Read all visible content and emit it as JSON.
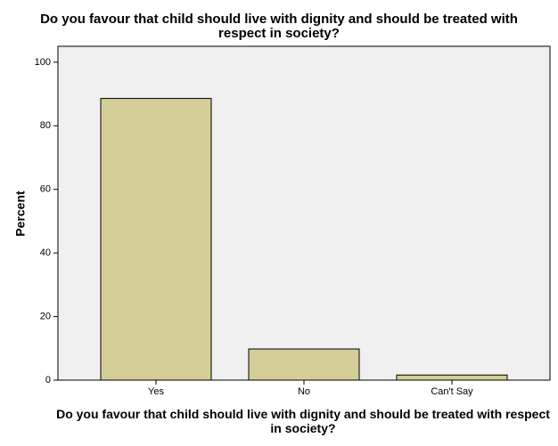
{
  "chart_data": {
    "type": "bar",
    "title": "Do you favour that child should live with dignity and should be treated with respect in society?",
    "x_label": "Do you favour that child should live with dignity and should be treated with respect in society?",
    "y_label": "Percent",
    "categories": [
      "Yes",
      "No",
      "Can't Say"
    ],
    "values": [
      88.6,
      9.8,
      1.6
    ],
    "color": "#d3ce97",
    "ylim": [
      0,
      105
    ],
    "yticks": [
      0,
      20,
      40,
      60,
      80,
      100
    ],
    "grid": false
  }
}
